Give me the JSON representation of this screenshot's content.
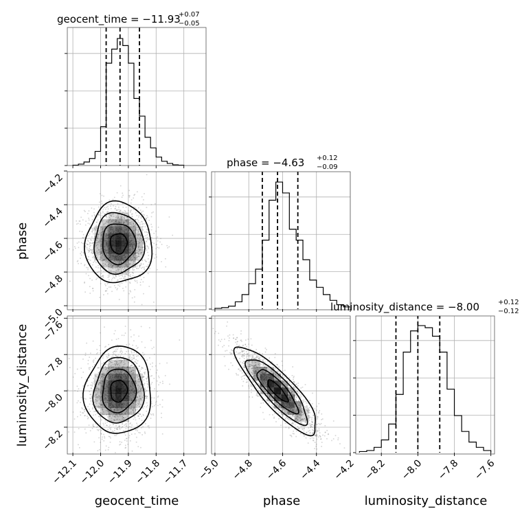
{
  "chart_data": {
    "type": "corner",
    "parameters": [
      "geocent_time",
      "phase",
      "luminosity_distance"
    ],
    "titles": [
      {
        "main": "geocent_time = −11.93",
        "plus": "+0.07",
        "minus": "−0.05"
      },
      {
        "main": "phase = −4.63",
        "plus": "+0.12",
        "minus": "−0.09"
      },
      {
        "main": "luminosity_distance = −8.00",
        "plus": "+0.12",
        "minus": "−0.12"
      }
    ],
    "ranges": [
      [
        -12.12,
        -11.62
      ],
      [
        -5.02,
        -4.2
      ],
      [
        -8.34,
        -7.58
      ]
    ],
    "ticks": [
      [
        -12.1,
        -12.0,
        -11.9,
        -11.8,
        -11.7
      ],
      [
        -5.0,
        -4.8,
        -4.6,
        -4.4,
        -4.2
      ],
      [
        -8.2,
        -8.0,
        -7.8,
        -7.6
      ]
    ],
    "tick_labels": [
      [
        "−12.1",
        "−12.0",
        "−11.9",
        "−11.8",
        "−11.7"
      ],
      [
        "−5.0",
        "−4.8",
        "−4.6",
        "−4.4",
        "−4.2"
      ],
      [
        "−8.2",
        "−8.0",
        "−7.8",
        "−7.6"
      ]
    ],
    "quantiles": [
      [
        -11.98,
        -11.93,
        -11.86
      ],
      [
        -4.72,
        -4.63,
        -4.51
      ],
      [
        -8.12,
        -8.0,
        -7.88
      ]
    ],
    "histograms": [
      {
        "bin_edges": [
          -12.1,
          -12.08,
          -12.06,
          -12.04,
          -12.02,
          -12.0,
          -11.98,
          -11.96,
          -11.94,
          -11.92,
          -11.9,
          -11.88,
          -11.86,
          -11.84,
          -11.82,
          -11.8,
          -11.78,
          -11.76,
          -11.74,
          -11.72,
          -11.7
        ],
        "counts": [
          0.5,
          2,
          5,
          10,
          20,
          55,
          145,
          165,
          180,
          170,
          145,
          95,
          70,
          40,
          25,
          12,
          6,
          3,
          1,
          0.5
        ]
      },
      {
        "bin_edges": [
          -5.0,
          -4.96,
          -4.92,
          -4.88,
          -4.84,
          -4.8,
          -4.76,
          -4.72,
          -4.68,
          -4.64,
          -4.6,
          -4.56,
          -4.52,
          -4.48,
          -4.44,
          -4.4,
          -4.36,
          -4.32,
          -4.28,
          -4.24,
          -4.2
        ],
        "counts": [
          1,
          2,
          4,
          10,
          20,
          35,
          55,
          95,
          150,
          175,
          160,
          110,
          95,
          68,
          40,
          30,
          20,
          12,
          6,
          3
        ]
      },
      {
        "bin_edges": [
          -8.32,
          -8.28,
          -8.24,
          -8.2,
          -8.16,
          -8.12,
          -8.08,
          -8.04,
          -8.0,
          -7.96,
          -7.92,
          -7.88,
          -7.84,
          -7.8,
          -7.76,
          -7.72,
          -7.68,
          -7.64,
          -7.6
        ],
        "counts": [
          1,
          2,
          5,
          12,
          27,
          55,
          95,
          115,
          120,
          118,
          110,
          95,
          60,
          35,
          20,
          10,
          5,
          2
        ]
      }
    ],
    "pairs": [
      {
        "x_param": 0,
        "y_param": 1,
        "mean": [
          -11.935,
          -4.63
        ],
        "sd": [
          0.06,
          0.12
        ],
        "rho": 0.0
      },
      {
        "x_param": 0,
        "y_param": 2,
        "mean": [
          -11.935,
          -8.0
        ],
        "sd": [
          0.06,
          0.12
        ],
        "rho": 0.05
      },
      {
        "x_param": 1,
        "y_param": 2,
        "mean": [
          -4.63,
          -8.0
        ],
        "sd": [
          0.12,
          0.12
        ],
        "rho": -0.85
      }
    ],
    "contour_levels_sigma": [
      0.5,
      1.0,
      1.5,
      2.0
    ],
    "colors": {
      "line": "#000000",
      "points": "#808080",
      "density": "#000000",
      "grid": "#b0b0b0"
    },
    "grid": true
  }
}
